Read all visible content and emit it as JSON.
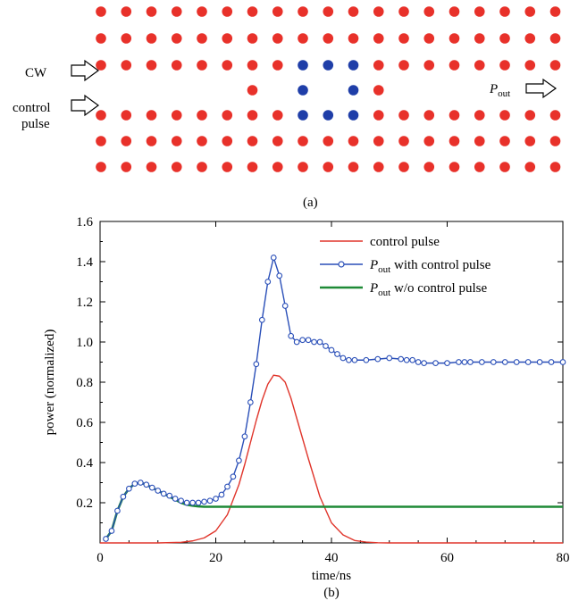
{
  "panel_a": {
    "label": "(a)",
    "cw_label": "CW",
    "control_label_line1": "control",
    "control_label_line2": "pulse",
    "pout_main": "P",
    "pout_sub": "out",
    "colors": {
      "rod": "#e8312a",
      "cavity_rod": "#1f3ea8"
    }
  },
  "chart_data": {
    "type": "line",
    "panel_label": "(b)",
    "xlabel": "time/ns",
    "ylabel": "power (normalized)",
    "xlim": [
      0,
      80
    ],
    "ylim": [
      0,
      1.6
    ],
    "xticks": [
      0,
      20,
      40,
      60,
      80
    ],
    "yticks": [
      0.2,
      0.4,
      0.6,
      0.8,
      1.0,
      1.2,
      1.4,
      1.6
    ],
    "grid": false,
    "legend_position": "top-right",
    "series": [
      {
        "name": "control pulse",
        "color": "#e0352b",
        "marker": "none",
        "x": [
          0,
          10,
          14,
          16,
          18,
          20,
          22,
          24,
          25,
          26,
          27,
          28,
          29,
          30,
          31,
          32,
          33,
          34,
          35,
          36,
          38,
          40,
          42,
          44,
          46,
          48,
          50,
          80
        ],
        "y": [
          0,
          0,
          0.003,
          0.01,
          0.025,
          0.06,
          0.14,
          0.29,
          0.39,
          0.5,
          0.61,
          0.71,
          0.79,
          0.835,
          0.83,
          0.8,
          0.72,
          0.62,
          0.52,
          0.42,
          0.23,
          0.1,
          0.04,
          0.012,
          0.004,
          0.001,
          0,
          0
        ]
      },
      {
        "name": "with control pulse",
        "name_prefix": "P",
        "name_sub": "out",
        "color": "#2a4fb8",
        "marker": "circle",
        "x": [
          1,
          2,
          3,
          4,
          5,
          6,
          7,
          8,
          9,
          10,
          11,
          12,
          13,
          14,
          15,
          16,
          17,
          18,
          19,
          20,
          21,
          22,
          23,
          24,
          25,
          26,
          27,
          28,
          29,
          30,
          31,
          32,
          33,
          34,
          35,
          36,
          37,
          38,
          39,
          40,
          41,
          42,
          43,
          44,
          46,
          48,
          50,
          52,
          53,
          54,
          55,
          56,
          58,
          60,
          62,
          63,
          64,
          66,
          68,
          70,
          72,
          74,
          76,
          78,
          80
        ],
        "y": [
          0.02,
          0.06,
          0.16,
          0.23,
          0.27,
          0.295,
          0.3,
          0.29,
          0.275,
          0.26,
          0.245,
          0.235,
          0.22,
          0.21,
          0.2,
          0.2,
          0.2,
          0.205,
          0.21,
          0.22,
          0.24,
          0.28,
          0.33,
          0.41,
          0.53,
          0.7,
          0.89,
          1.11,
          1.3,
          1.42,
          1.33,
          1.18,
          1.03,
          1.0,
          1.01,
          1.01,
          1.0,
          1.0,
          0.98,
          0.96,
          0.94,
          0.92,
          0.91,
          0.91,
          0.91,
          0.915,
          0.92,
          0.915,
          0.91,
          0.91,
          0.9,
          0.895,
          0.895,
          0.895,
          0.9,
          0.9,
          0.9,
          0.9,
          0.9,
          0.9,
          0.9,
          0.9,
          0.9,
          0.9,
          0.9
        ]
      },
      {
        "name": "w/o control pulse",
        "name_prefix": "P",
        "name_sub": "out",
        "color": "#1e8a36",
        "marker": "none",
        "x": [
          1,
          2,
          3,
          4,
          5,
          6,
          7,
          8,
          9,
          10,
          11,
          12,
          13,
          14,
          15,
          16,
          17,
          18,
          20,
          25,
          30,
          40,
          50,
          60,
          70,
          80
        ],
        "y": [
          0.02,
          0.06,
          0.16,
          0.23,
          0.27,
          0.295,
          0.3,
          0.29,
          0.275,
          0.26,
          0.245,
          0.23,
          0.215,
          0.2,
          0.19,
          0.185,
          0.182,
          0.18,
          0.18,
          0.18,
          0.18,
          0.18,
          0.18,
          0.18,
          0.18,
          0.18
        ]
      }
    ]
  }
}
